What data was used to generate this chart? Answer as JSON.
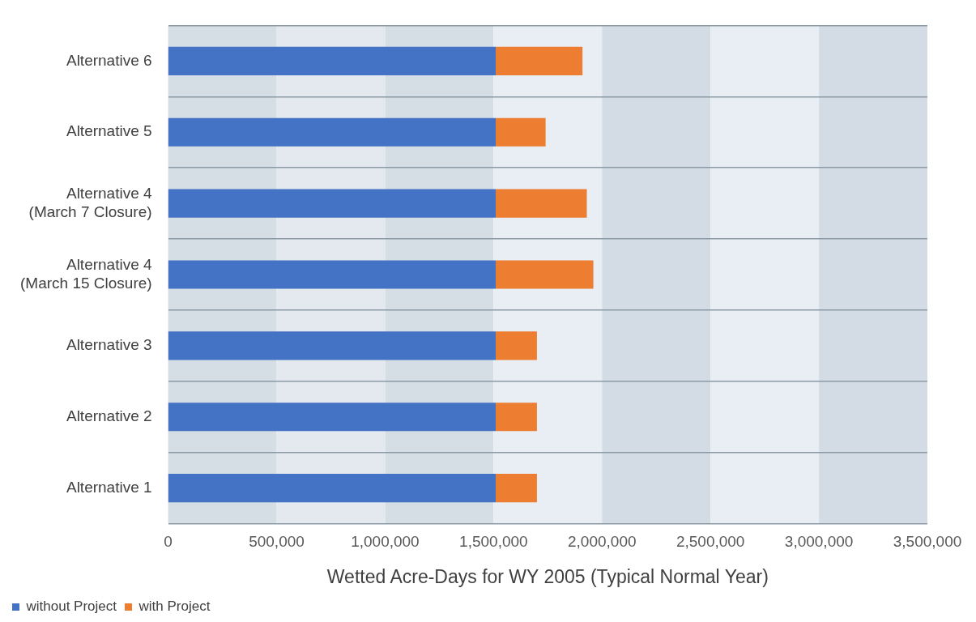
{
  "chart_data": {
    "type": "bar",
    "orientation": "horizontal",
    "stacked": true,
    "xlabel": "Wetted Acre-Days for WY 2005 (Typical Normal Year)",
    "categories": [
      "Alternative 6",
      "Alternative 5",
      "Alternative 4 (March 7 Closure)",
      "Alternative 4 (March 15 Closure)",
      "Alternative 3",
      "Alternative 2",
      "Alternative 1"
    ],
    "series": [
      {
        "name": "without Project",
        "color": "#4472c4",
        "values": [
          1510000,
          1510000,
          1510000,
          1510000,
          1510000,
          1510000,
          1510000
        ]
      },
      {
        "name": "with Project",
        "color": "#ed7d31",
        "values": [
          400000,
          230000,
          420000,
          450000,
          190000,
          190000,
          190000
        ]
      }
    ],
    "xlim": [
      0,
      3500000
    ],
    "xticks": [
      0,
      {
        "value": 500000,
        "label": "500,000"
      },
      {
        "value": 1000000,
        "label": "1,000,000"
      },
      {
        "value": 1500000,
        "label": "1,500,000"
      },
      {
        "value": 2000000,
        "label": "2,000,000"
      },
      {
        "value": 2500000,
        "label": "2,500,000"
      },
      {
        "value": 3000000,
        "label": "3,000,000"
      },
      {
        "value": 3500000,
        "label": "3,500,000"
      }
    ],
    "grid": "y",
    "legend": "bottom",
    "bands": [
      {
        "axis": "x",
        "from": 0,
        "to": 500000,
        "color": "#d5dde5"
      },
      {
        "axis": "x",
        "from": 500000,
        "to": 1000000,
        "color": "#e3e9ef"
      },
      {
        "axis": "x",
        "from": 1000000,
        "to": 1500000,
        "color": "#d5dde5"
      },
      {
        "axis": "x",
        "from": 1500000,
        "to": 2000000,
        "color": "#e8eef3"
      },
      {
        "axis": "x",
        "from": 2000000,
        "to": 2500000,
        "color": "#d3dce4"
      },
      {
        "axis": "x",
        "from": 2500000,
        "to": 3000000,
        "color": "#e8eef3"
      },
      {
        "axis": "x",
        "from": 3000000,
        "to": 3500000,
        "color": "#d3dce4"
      }
    ]
  }
}
